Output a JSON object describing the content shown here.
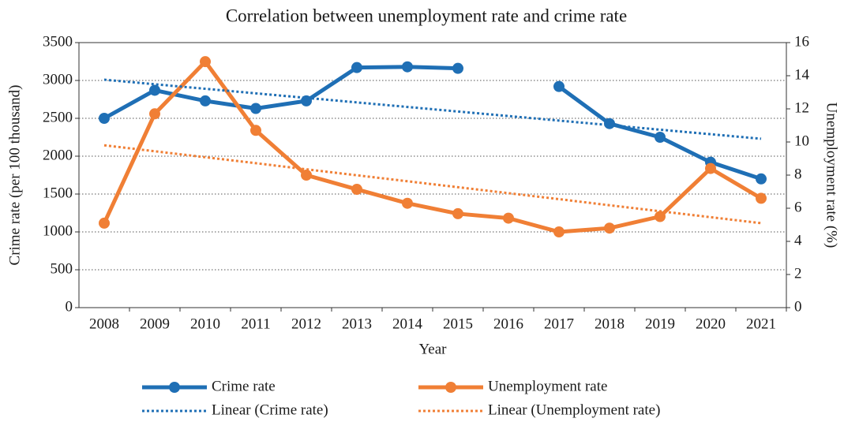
{
  "chart_data": {
    "type": "line",
    "title": "Correlation between unemployment rate and crime rate",
    "x_label": "Year",
    "y_label": "Crime rate (per 100 thousand)",
    "y2_label": "Unemployment rate (%)",
    "categories": [
      "2008",
      "2009",
      "2010",
      "2011",
      "2012",
      "2013",
      "2014",
      "2015",
      "2016",
      "2017",
      "2018",
      "2019",
      "2020",
      "2021"
    ],
    "series": [
      {
        "name": "Crime rate",
        "color": "#1f6fb5",
        "markers": true,
        "dashed": false,
        "values": [
          2500,
          2870,
          2730,
          2630,
          2730,
          3170,
          3180,
          3160,
          null,
          2920,
          2430,
          2250,
          1920,
          1700
        ]
      },
      {
        "name": "Unemployment rate",
        "color": "#f07f35",
        "markers": true,
        "dashed": false,
        "axis": "y2",
        "values": [
          5.1,
          11.7,
          14.85,
          10.7,
          8.0,
          7.14,
          6.3,
          5.67,
          5.4,
          4.57,
          4.8,
          5.5,
          8.4,
          6.6
        ]
      },
      {
        "name": "Linear (Crime rate)",
        "color": "#1f6fb5",
        "markers": false,
        "dashed": true,
        "values": [
          3010,
          2950,
          2890,
          2830,
          2770,
          2710,
          2650,
          2590,
          2530,
          2470,
          2410,
          2350,
          2290,
          2230
        ]
      },
      {
        "name": "Linear (Unemployment rate)",
        "color": "#f07f35",
        "markers": false,
        "dashed": true,
        "axis": "y2",
        "values": [
          9.8,
          9.44,
          9.08,
          8.72,
          8.35,
          7.99,
          7.63,
          7.27,
          6.91,
          6.55,
          6.18,
          5.82,
          5.46,
          5.1
        ]
      }
    ],
    "ylim": [
      0,
      3500
    ],
    "yticks": [
      0,
      500,
      1000,
      1500,
      2000,
      2500,
      3000,
      3500
    ],
    "y2lim": [
      0,
      16
    ],
    "y2ticks": [
      0,
      2,
      4,
      6,
      8,
      10,
      12,
      14,
      16
    ],
    "grid": true,
    "legend": "bottom"
  }
}
